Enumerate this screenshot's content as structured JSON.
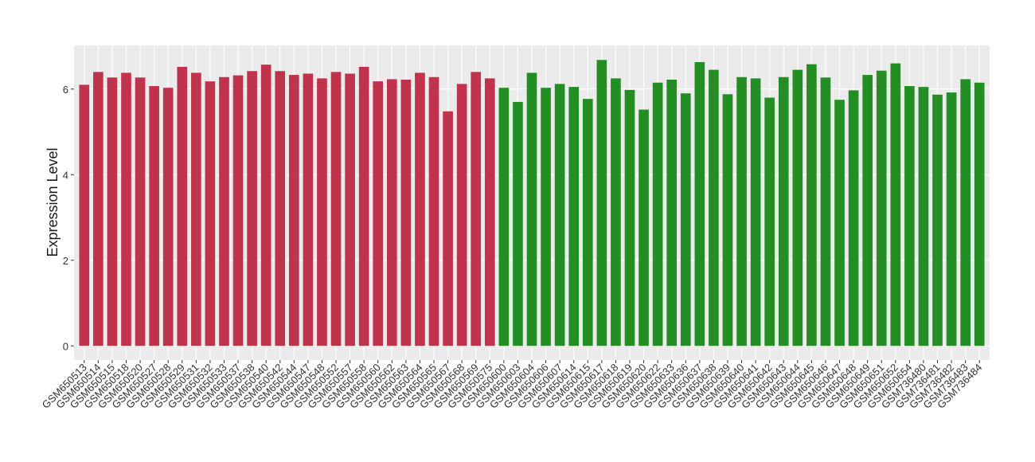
{
  "chart_data": {
    "type": "bar",
    "y_label": "Expression Level",
    "categories": [
      "GSM650513",
      "GSM650514",
      "GSM650515",
      "GSM650518",
      "GSM650520",
      "GSM650527",
      "GSM650528",
      "GSM650529",
      "GSM650531",
      "GSM650532",
      "GSM650533",
      "GSM650537",
      "GSM650538",
      "GSM650540",
      "GSM650542",
      "GSM650544",
      "GSM650547",
      "GSM650548",
      "GSM650552",
      "GSM650557",
      "GSM650558",
      "GSM650560",
      "GSM650562",
      "GSM650563",
      "GSM650564",
      "GSM650565",
      "GSM650567",
      "GSM650568",
      "GSM650569",
      "GSM650575",
      "GSM650600",
      "GSM650603",
      "GSM650604",
      "GSM650606",
      "GSM650607",
      "GSM650614",
      "GSM650615",
      "GSM650617",
      "GSM650618",
      "GSM650619",
      "GSM650620",
      "GSM650622",
      "GSM650633",
      "GSM650636",
      "GSM650637",
      "GSM650638",
      "GSM650639",
      "GSM650640",
      "GSM650641",
      "GSM650642",
      "GSM650643",
      "GSM650644",
      "GSM650645",
      "GSM650646",
      "GSM650647",
      "GSM650648",
      "GSM650649",
      "GSM650651",
      "GSM650652",
      "GSM650654",
      "GSM736480",
      "GSM736481",
      "GSM736482",
      "GSM736483",
      "GSM736484"
    ],
    "values": [
      6.1,
      6.4,
      6.27,
      6.38,
      6.27,
      6.07,
      6.03,
      6.52,
      6.38,
      6.18,
      6.28,
      6.32,
      6.42,
      6.57,
      6.42,
      6.33,
      6.36,
      6.25,
      6.4,
      6.36,
      6.52,
      6.18,
      6.23,
      6.22,
      6.38,
      6.28,
      5.48,
      6.12,
      6.4,
      6.25,
      6.03,
      5.7,
      6.38,
      6.03,
      6.12,
      6.05,
      5.77,
      6.68,
      6.25,
      5.98,
      5.52,
      6.15,
      6.22,
      5.9,
      6.63,
      6.45,
      5.88,
      6.28,
      6.25,
      5.8,
      6.28,
      6.45,
      6.58,
      6.27,
      5.75,
      5.97,
      6.33,
      6.43,
      6.6,
      6.07,
      6.05,
      5.87,
      5.92,
      6.23,
      6.15
    ],
    "colors": [
      "#c0334d",
      "#c0334d",
      "#c0334d",
      "#c0334d",
      "#c0334d",
      "#c0334d",
      "#c0334d",
      "#c0334d",
      "#c0334d",
      "#c0334d",
      "#c0334d",
      "#c0334d",
      "#c0334d",
      "#c0334d",
      "#c0334d",
      "#c0334d",
      "#c0334d",
      "#c0334d",
      "#c0334d",
      "#c0334d",
      "#c0334d",
      "#c0334d",
      "#c0334d",
      "#c0334d",
      "#c0334d",
      "#c0334d",
      "#c0334d",
      "#c0334d",
      "#c0334d",
      "#c0334d",
      "#238e23",
      "#238e23",
      "#238e23",
      "#238e23",
      "#238e23",
      "#238e23",
      "#238e23",
      "#238e23",
      "#238e23",
      "#238e23",
      "#238e23",
      "#238e23",
      "#238e23",
      "#238e23",
      "#238e23",
      "#238e23",
      "#238e23",
      "#238e23",
      "#238e23",
      "#238e23",
      "#238e23",
      "#238e23",
      "#238e23",
      "#238e23",
      "#238e23",
      "#238e23",
      "#238e23",
      "#238e23",
      "#238e23",
      "#238e23",
      "#238e23",
      "#238e23",
      "#238e23",
      "#238e23",
      "#238e23"
    ],
    "ylim": [
      -0.33,
      7.02
    ],
    "yticks": [
      0,
      2,
      4,
      6
    ],
    "grid": true
  }
}
